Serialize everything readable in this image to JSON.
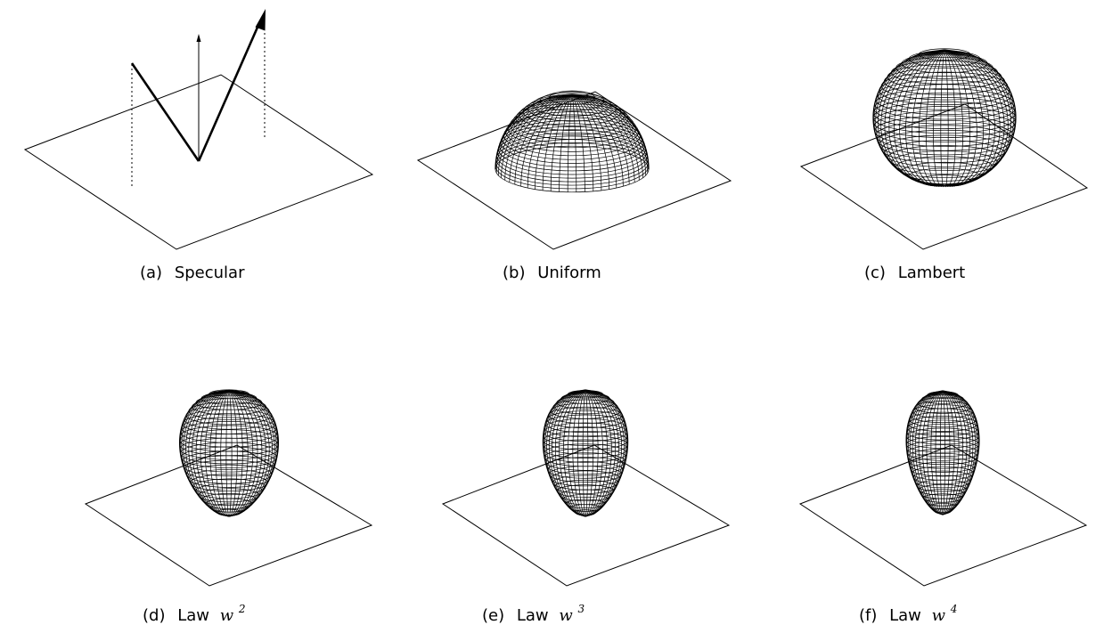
{
  "colors": {
    "background": "#ffffff",
    "ink": "#000000"
  },
  "panels": [
    {
      "id": "a",
      "kind": "specular",
      "label_prefix": "(a)",
      "label_text": "Specular",
      "label_math_base": "",
      "label_math_exp": ""
    },
    {
      "id": "b",
      "kind": "uniform",
      "label_prefix": "(b)",
      "label_text": "Uniform",
      "label_math_base": "",
      "label_math_exp": ""
    },
    {
      "id": "c",
      "kind": "lambert",
      "label_prefix": "(c)",
      "label_text": "Lambert",
      "label_math_base": "",
      "label_math_exp": ""
    },
    {
      "id": "d",
      "kind": "law",
      "exponent": 2,
      "label_prefix": "(d)",
      "label_text": "Law",
      "label_math_base": "w",
      "label_math_exp": "2"
    },
    {
      "id": "e",
      "kind": "law",
      "exponent": 3,
      "label_prefix": "(e)",
      "label_text": "Law",
      "label_math_base": "w",
      "label_math_exp": "3"
    },
    {
      "id": "f",
      "kind": "law",
      "exponent": 4,
      "label_prefix": "(f)",
      "label_text": "Law",
      "label_math_base": "w",
      "label_math_exp": "4"
    }
  ]
}
